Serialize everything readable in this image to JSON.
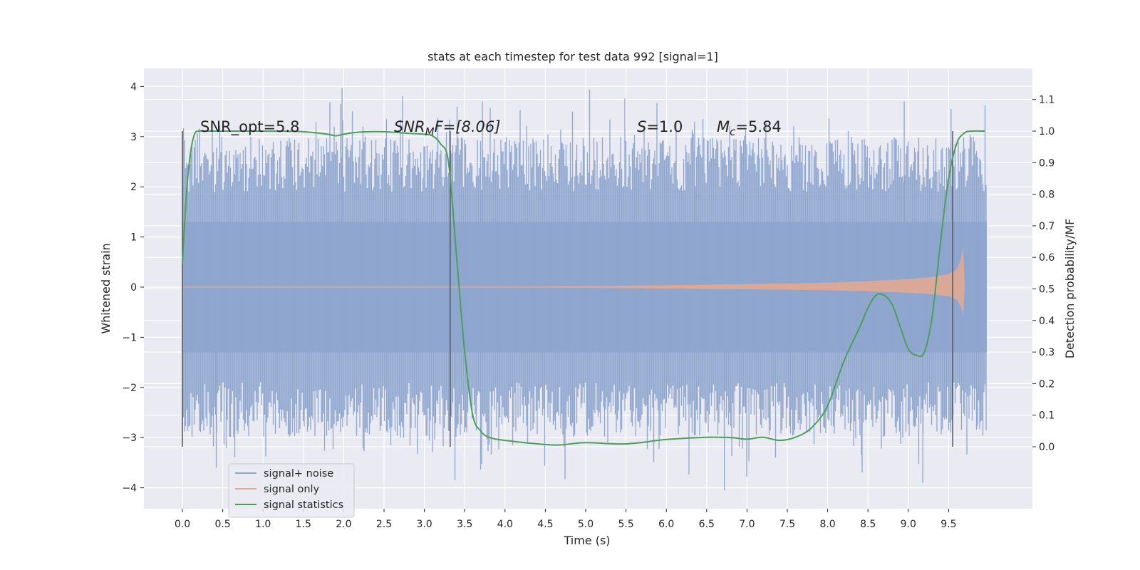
{
  "chart_data": {
    "type": "line",
    "title": "stats at each timestep for test data 992 [signal=1]",
    "xlabel": "Time (s)",
    "ylabel_left": "Whitened strain",
    "ylabel_right": "Detection probability/MF",
    "xlim": [
      -0.5,
      10.5
    ],
    "ylim_left": [
      -4.4,
      4.4
    ],
    "ylim_right": [
      -0.2,
      1.2
    ],
    "grid": true,
    "legend_position": "lower-left",
    "x_ticks": [
      "0.0",
      "0.5",
      "1.0",
      "1.5",
      "2.0",
      "2.5",
      "3.0",
      "3.5",
      "4.0",
      "4.5",
      "5.0",
      "5.5",
      "6.0",
      "6.5",
      "7.0",
      "7.5",
      "8.0",
      "8.5",
      "9.0",
      "9.5"
    ],
    "y_ticks_left": [
      "4",
      "3",
      "2",
      "1",
      "0",
      "−1",
      "−2",
      "−3",
      "−4"
    ],
    "y_ticks_right": [
      "1.1",
      "1.0",
      "0.9",
      "0.8",
      "0.7",
      "0.6",
      "0.5",
      "0.4",
      "0.3",
      "0.2",
      "0.1",
      "0.0"
    ],
    "annotations": {
      "snr_opt": "SNR_opt=5.8",
      "snr_mf_main": "SNR",
      "snr_mf_sub": "M",
      "snr_mf_rest": "F=[8.06]",
      "s_main": "S",
      "s_rest": "=1.0",
      "mc_main": "M",
      "mc_sub": "c",
      "mc_rest": "=5.84"
    },
    "vertical_markers_x": [
      0.0,
      3.32,
      9.55
    ],
    "series": [
      {
        "name": "signal+ noise",
        "color": "#8fa6cf",
        "t_range": [
          0.0,
          9.97
        ],
        "band_core": [
          -1.3,
          1.3
        ],
        "band_dense": [
          -2.2,
          2.2
        ],
        "extremes": [
          -4.05,
          3.97
        ]
      },
      {
        "name": "signal only",
        "color": "#e5a98f",
        "envelope": {
          "x": [
            0.0,
            4.5,
            6.0,
            7.0,
            8.0,
            8.5,
            9.0,
            9.3,
            9.5,
            9.6,
            9.65,
            9.68,
            9.7
          ],
          "amp": [
            0.0,
            0.01,
            0.04,
            0.06,
            0.09,
            0.12,
            0.16,
            0.2,
            0.26,
            0.35,
            0.55,
            0.8,
            0.0
          ]
        }
      },
      {
        "name": "signal statistics",
        "color": "#4c9f5a",
        "x": [
          0.0,
          0.05,
          0.1,
          0.15,
          0.2,
          0.3,
          0.5,
          1.0,
          1.5,
          1.8,
          1.9,
          2.0,
          2.2,
          2.5,
          2.8,
          3.0,
          3.1,
          3.2,
          3.3,
          3.4,
          3.5,
          3.6,
          3.7,
          3.8,
          4.0,
          4.5,
          4.7,
          5.0,
          5.5,
          6.0,
          6.5,
          6.8,
          7.0,
          7.2,
          7.4,
          7.6,
          7.8,
          8.0,
          8.2,
          8.4,
          8.5,
          8.6,
          8.7,
          8.8,
          8.9,
          9.0,
          9.1,
          9.2,
          9.3,
          9.4,
          9.5,
          9.6,
          9.7,
          9.8,
          9.9,
          9.95
        ],
        "y": [
          0.58,
          0.8,
          0.93,
          0.99,
          1.0,
          1.0,
          1.0,
          1.0,
          0.998,
          0.99,
          0.985,
          0.99,
          0.997,
          0.998,
          0.993,
          0.99,
          0.985,
          0.96,
          0.9,
          0.6,
          0.3,
          0.1,
          0.05,
          0.03,
          0.02,
          0.007,
          0.006,
          0.013,
          0.009,
          0.023,
          0.03,
          0.029,
          0.024,
          0.03,
          0.02,
          0.03,
          0.06,
          0.13,
          0.27,
          0.38,
          0.44,
          0.48,
          0.48,
          0.45,
          0.38,
          0.31,
          0.29,
          0.3,
          0.42,
          0.65,
          0.85,
          0.96,
          0.995,
          1.0,
          1.0,
          1.0
        ]
      }
    ]
  }
}
